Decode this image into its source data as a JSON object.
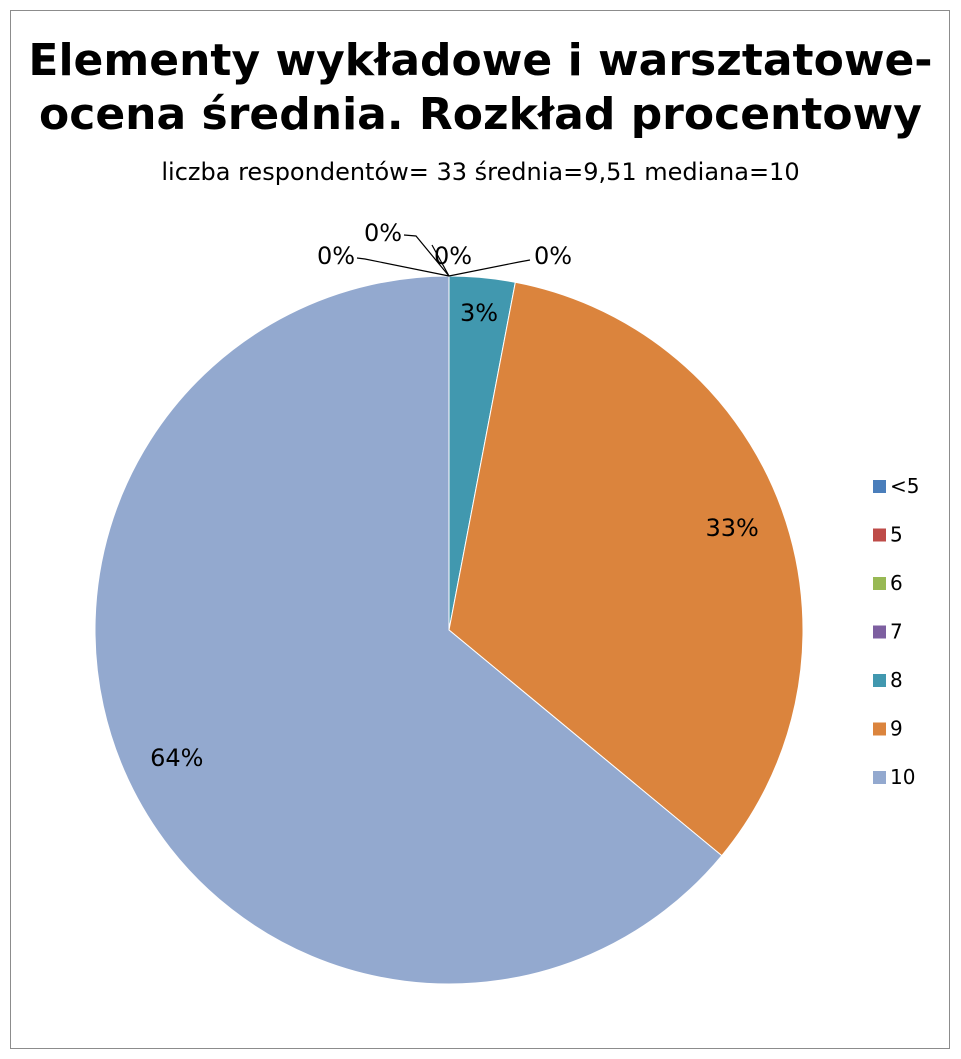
{
  "chart_data": {
    "type": "pie",
    "title_lines": [
      "Elementy wykładowe i warsztatowe-",
      "ocena średnia. Rozkład procentowy"
    ],
    "subtitle": "liczba respondentów= 33 średnia=9,51 mediana=10",
    "slices": [
      {
        "label": "<5",
        "value": 0,
        "data_label": "0%",
        "color": "#4a7ebb"
      },
      {
        "label": "5",
        "value": 0,
        "data_label": "0%",
        "color": "#be4b48"
      },
      {
        "label": "6",
        "value": 0,
        "data_label": "0%",
        "color": "#98b954"
      },
      {
        "label": "7",
        "value": 0,
        "data_label": "0%",
        "color": "#7d5fa0"
      },
      {
        "label": "8",
        "value": 3,
        "data_label": "3%",
        "color": "#4198af"
      },
      {
        "label": "9",
        "value": 33,
        "data_label": "33%",
        "color": "#db843d"
      },
      {
        "label": "10",
        "value": 64,
        "data_label": "64%",
        "color": "#93a9cf"
      }
    ],
    "legend_position": "right"
  }
}
